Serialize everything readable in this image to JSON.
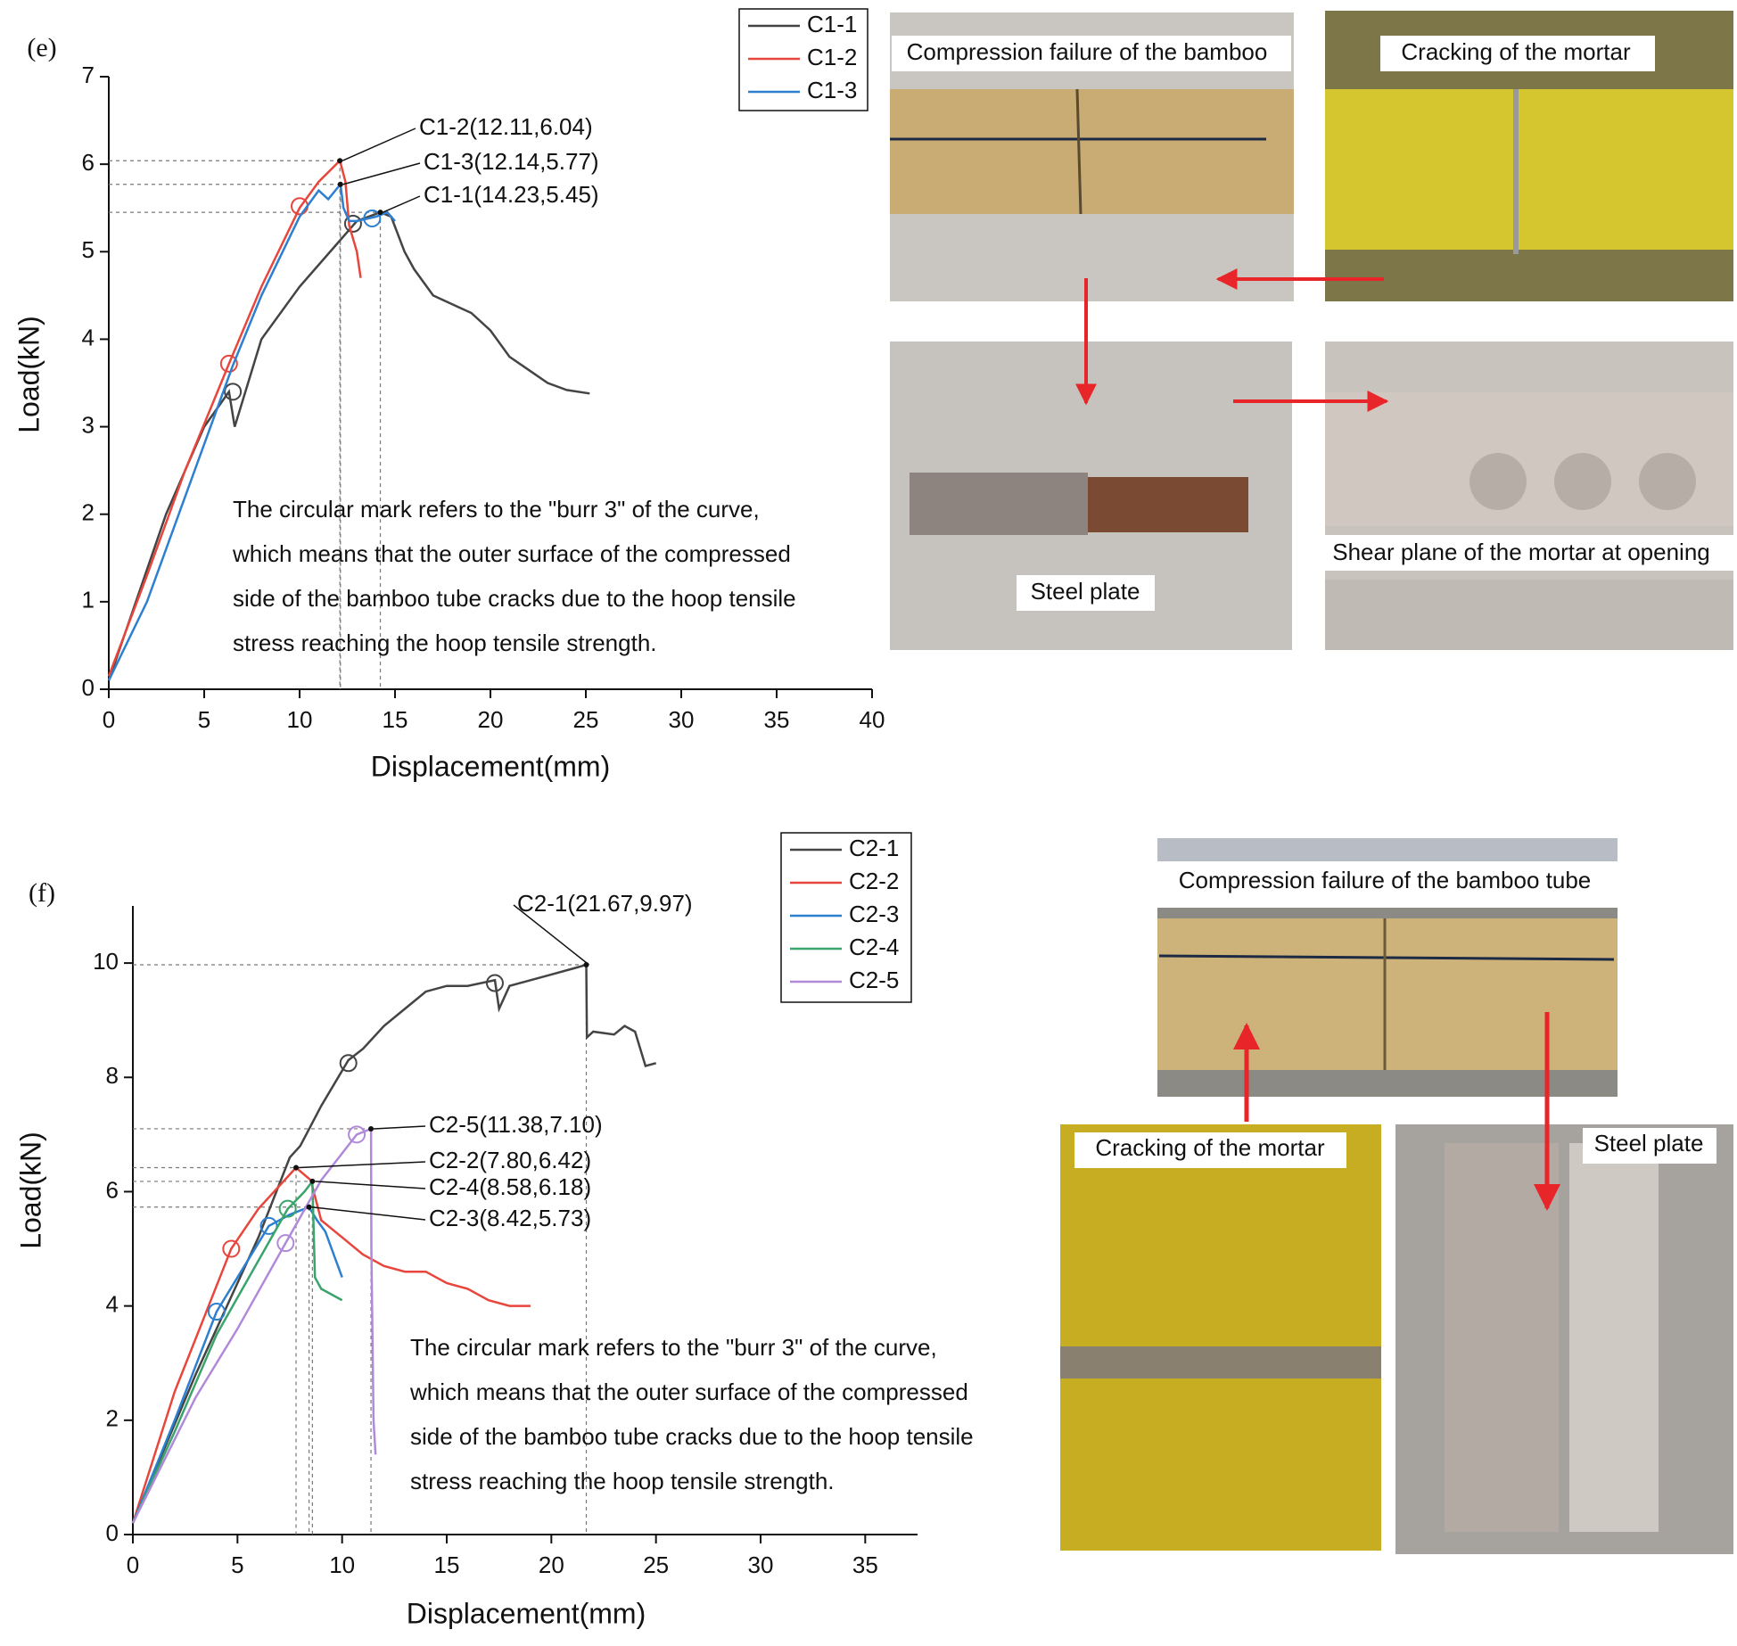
{
  "chart_data": [
    {
      "type": "line",
      "panel_label": "(e)",
      "x_label": "Displacement(mm)",
      "y_label": "Load(kN)",
      "xlim": [
        0,
        40
      ],
      "xticks": [
        0,
        5,
        10,
        15,
        20,
        25,
        30,
        35,
        40
      ],
      "ylim": [
        0,
        7
      ],
      "yticks": [
        0,
        1,
        2,
        3,
        4,
        5,
        6,
        7
      ],
      "series": [
        {
          "name": "C1-1",
          "color": "#444444",
          "x": [
            0,
            3,
            5,
            6.3,
            6.6,
            8,
            10,
            12,
            13,
            14.23,
            14.8,
            15.5,
            16,
            17,
            18,
            19,
            20,
            21,
            22,
            23,
            24,
            25.2
          ],
          "values": [
            0.1,
            2,
            3,
            3.4,
            3.0,
            4,
            4.6,
            5.1,
            5.35,
            5.45,
            5.4,
            5.0,
            4.8,
            4.5,
            4.4,
            4.3,
            4.1,
            3.8,
            3.65,
            3.5,
            3.42,
            3.38
          ],
          "markers": [
            [
              6.5,
              3.4
            ],
            [
              12.8,
              5.32
            ]
          ]
        },
        {
          "name": "C1-2",
          "color": "#e8463c",
          "x": [
            0,
            2,
            4,
            6.3,
            8,
            10,
            11,
            12.11,
            12.4,
            12.6,
            13,
            13.2
          ],
          "values": [
            0.15,
            1.3,
            2.5,
            3.72,
            4.6,
            5.5,
            5.8,
            6.04,
            5.8,
            5.3,
            5.0,
            4.7
          ],
          "markers": [
            [
              6.3,
              3.72
            ],
            [
              10,
              5.52
            ]
          ]
        },
        {
          "name": "C1-3",
          "color": "#2d7fd0",
          "x": [
            0,
            2,
            4,
            6.5,
            8,
            10,
            11,
            11.5,
            12.14,
            12.3,
            12.6,
            13,
            14,
            14.6,
            15
          ],
          "values": [
            0.1,
            1.0,
            2.2,
            3.7,
            4.5,
            5.4,
            5.7,
            5.6,
            5.77,
            5.5,
            5.35,
            5.35,
            5.4,
            5.45,
            5.35
          ],
          "markers": [
            [
              13.8,
              5.38
            ]
          ]
        }
      ],
      "callouts": [
        {
          "label": "C1-2(12.11,6.04)",
          "x": 12.11,
          "y": 6.04
        },
        {
          "label": "C1-3(12.14,5.77)",
          "x": 12.14,
          "y": 5.77
        },
        {
          "label": "C1-1(14.23,5.45)",
          "x": 14.23,
          "y": 5.45
        }
      ],
      "annotation": [
        "The circular mark refers to the \"burr 3\" of the curve,",
        "which means that the outer surface of the compressed",
        "side of the bamboo tube cracks due to the hoop tensile",
        "stress reaching the hoop tensile strength."
      ],
      "photo_captions": [
        "Compression failure of the bamboo",
        "Cracking of the mortar",
        "Steel plate",
        "Shear plane of the mortar at opening"
      ]
    },
    {
      "type": "line",
      "panel_label": "(f)",
      "x_label": "Displacement(mm)",
      "y_label": "Load(kN)",
      "xlim": [
        0,
        37.5
      ],
      "xticks": [
        0,
        5,
        10,
        15,
        20,
        25,
        30,
        35
      ],
      "ylim": [
        0,
        11
      ],
      "yticks": [
        0,
        2,
        4,
        6,
        8,
        10
      ],
      "series": [
        {
          "name": "C2-1",
          "color": "#444444",
          "x": [
            0,
            3,
            6,
            7.5,
            8,
            9,
            10.3,
            11,
            12,
            13,
            14,
            15,
            16,
            17.3,
            17.5,
            18,
            19,
            20,
            21,
            21.67,
            21.7,
            22,
            23,
            23.5,
            24,
            24.5,
            25
          ],
          "values": [
            0.2,
            2.8,
            5.2,
            6.6,
            6.8,
            7.5,
            8.3,
            8.5,
            8.9,
            9.2,
            9.5,
            9.6,
            9.6,
            9.7,
            9.2,
            9.6,
            9.7,
            9.8,
            9.9,
            9.97,
            8.7,
            8.8,
            8.75,
            8.9,
            8.8,
            8.2,
            8.25
          ],
          "markers": [
            [
              10.3,
              8.25
            ],
            [
              17.3,
              9.65
            ]
          ]
        },
        {
          "name": "C2-2",
          "color": "#e8463c",
          "x": [
            0,
            2,
            4.7,
            6,
            7.8,
            8.5,
            9,
            10,
            11,
            12,
            13,
            14,
            15,
            16,
            17,
            18,
            19
          ],
          "values": [
            0.2,
            2.5,
            5.0,
            5.7,
            6.42,
            6.2,
            5.5,
            5.2,
            4.9,
            4.7,
            4.6,
            4.6,
            4.4,
            4.3,
            4.1,
            4.0,
            4.0
          ],
          "markers": [
            [
              4.7,
              5.0
            ]
          ]
        },
        {
          "name": "C2-3",
          "color": "#2d7fd0",
          "x": [
            0,
            2,
            4,
            6.5,
            7.5,
            8.42,
            8.8,
            9.2,
            9.5,
            10
          ],
          "values": [
            0.2,
            2,
            3.9,
            5.4,
            5.6,
            5.73,
            5.5,
            5.3,
            5.0,
            4.5
          ],
          "markers": [
            [
              4,
              3.9
            ],
            [
              6.5,
              5.4
            ]
          ]
        },
        {
          "name": "C2-4",
          "color": "#3aa46a",
          "x": [
            0,
            2,
            4,
            7.4,
            8.2,
            8.58,
            8.7,
            9,
            10
          ],
          "values": [
            0.2,
            1.8,
            3.5,
            5.7,
            6.0,
            6.18,
            4.5,
            4.3,
            4.1
          ],
          "markers": [
            [
              7.4,
              5.7
            ]
          ]
        },
        {
          "name": "C2-5",
          "color": "#b08ad8",
          "x": [
            0,
            3,
            5,
            7.3,
            9,
            10.7,
            11.38,
            11.4,
            11.5,
            11.6
          ],
          "values": [
            0.2,
            2.4,
            3.6,
            5.1,
            6.2,
            7.0,
            7.1,
            5,
            2,
            1.4
          ],
          "markers": [
            [
              7.3,
              5.1
            ],
            [
              10.7,
              7.0
            ]
          ]
        }
      ],
      "callouts": [
        {
          "label": "C2-1(21.67,9.97)",
          "x": 21.67,
          "y": 9.97
        },
        {
          "label": "C2-5(11.38,7.10)",
          "x": 11.38,
          "y": 7.1
        },
        {
          "label": "C2-2(7.80,6.42)",
          "x": 7.8,
          "y": 6.42
        },
        {
          "label": "C2-4(8.58,6.18)",
          "x": 8.58,
          "y": 6.18
        },
        {
          "label": "C2-3(8.42,5.73)",
          "x": 8.42,
          "y": 5.73
        }
      ],
      "annotation": [
        "The circular mark refers to the \"burr 3\" of the curve,",
        "which means that the outer surface of the compressed",
        "side of the bamboo tube cracks due to the hoop tensile",
        "stress reaching the hoop tensile strength."
      ],
      "photo_captions": [
        "Compression failure of the bamboo tube",
        "Cracking of the mortar",
        "Steel plate"
      ]
    }
  ]
}
